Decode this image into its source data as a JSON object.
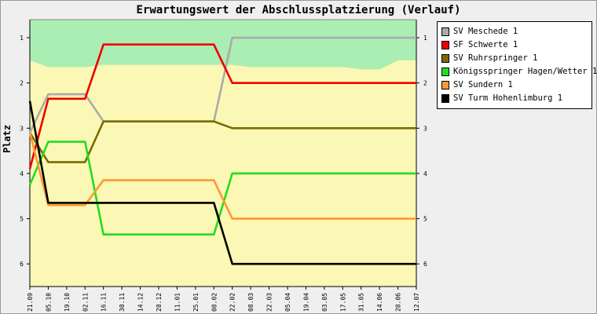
{
  "chart_data": {
    "type": "line",
    "title": "Erwartungswert der Abschlussplatzierung (Verlauf)",
    "ylabel": "Platz",
    "ylim": [
      0.6,
      6.5
    ],
    "y_ticks": [
      "1",
      "2",
      "3",
      "4",
      "5",
      "6"
    ],
    "categories": [
      "21.09",
      "05.10",
      "19.10",
      "02.11",
      "16.11",
      "30.11",
      "14.12",
      "28.12",
      "11.01",
      "25.01",
      "08.02",
      "22.02",
      "08.03",
      "22.03",
      "05.04",
      "19.04",
      "03.05",
      "17.05",
      "31.05",
      "14.06",
      "28.06",
      "12.07"
    ],
    "series": [
      {
        "name": "SV Meschede 1",
        "color": "#aaaaaa",
        "values": [
          3.1,
          2.25,
          2.25,
          2.25,
          2.85,
          2.85,
          2.85,
          2.85,
          2.85,
          2.85,
          2.85,
          1.0,
          1.0,
          1.0,
          1.0,
          1.0,
          1.0,
          1.0,
          1.0,
          1.0,
          1.0,
          1.0
        ]
      },
      {
        "name": "SF Schwerte 1",
        "color": "#ee0000",
        "values": [
          3.9,
          2.35,
          2.35,
          2.35,
          1.15,
          1.15,
          1.15,
          1.15,
          1.15,
          1.15,
          1.15,
          2.0,
          2.0,
          2.0,
          2.0,
          2.0,
          2.0,
          2.0,
          2.0,
          2.0,
          2.0,
          2.0
        ]
      },
      {
        "name": "SV Ruhrspringer 1",
        "color": "#7a6a00",
        "values": [
          3.1,
          3.75,
          3.75,
          3.75,
          2.85,
          2.85,
          2.85,
          2.85,
          2.85,
          2.85,
          2.85,
          3.0,
          3.0,
          3.0,
          3.0,
          3.0,
          3.0,
          3.0,
          3.0,
          3.0,
          3.0,
          3.0
        ]
      },
      {
        "name": "Königsspringer Hagen/Wetter 1",
        "color": "#22dd22",
        "values": [
          4.25,
          3.3,
          3.3,
          3.3,
          5.35,
          5.35,
          5.35,
          5.35,
          5.35,
          5.35,
          5.35,
          4.0,
          4.0,
          4.0,
          4.0,
          4.0,
          4.0,
          4.0,
          4.0,
          4.0,
          4.0,
          4.0
        ]
      },
      {
        "name": "SV Sundern 1",
        "color": "#ff9933",
        "values": [
          3.1,
          4.7,
          4.7,
          4.7,
          4.15,
          4.15,
          4.15,
          4.15,
          4.15,
          4.15,
          4.15,
          5.0,
          5.0,
          5.0,
          5.0,
          5.0,
          5.0,
          5.0,
          5.0,
          5.0,
          5.0,
          5.0
        ]
      },
      {
        "name": "SV Turm Hohenlimburg 1",
        "color": "#000000",
        "values": [
          2.4,
          4.65,
          4.65,
          4.65,
          4.65,
          4.65,
          4.65,
          4.65,
          4.65,
          4.65,
          4.65,
          6.0,
          6.0,
          6.0,
          6.0,
          6.0,
          6.0,
          6.0,
          6.0,
          6.0,
          6.0,
          6.0
        ]
      }
    ],
    "background_bands": {
      "green_top_until": [
        1.5,
        1.65,
        1.65,
        1.65,
        1.6,
        1.6,
        1.6,
        1.6,
        1.6,
        1.6,
        1.6,
        1.6,
        1.65,
        1.65,
        1.65,
        1.65,
        1.65,
        1.65,
        1.7,
        1.7,
        1.5,
        1.5
      ],
      "green_color": "#aaeeb4",
      "yellow_color": "#fbf7b4"
    },
    "legend_position": "right",
    "grid": false
  }
}
